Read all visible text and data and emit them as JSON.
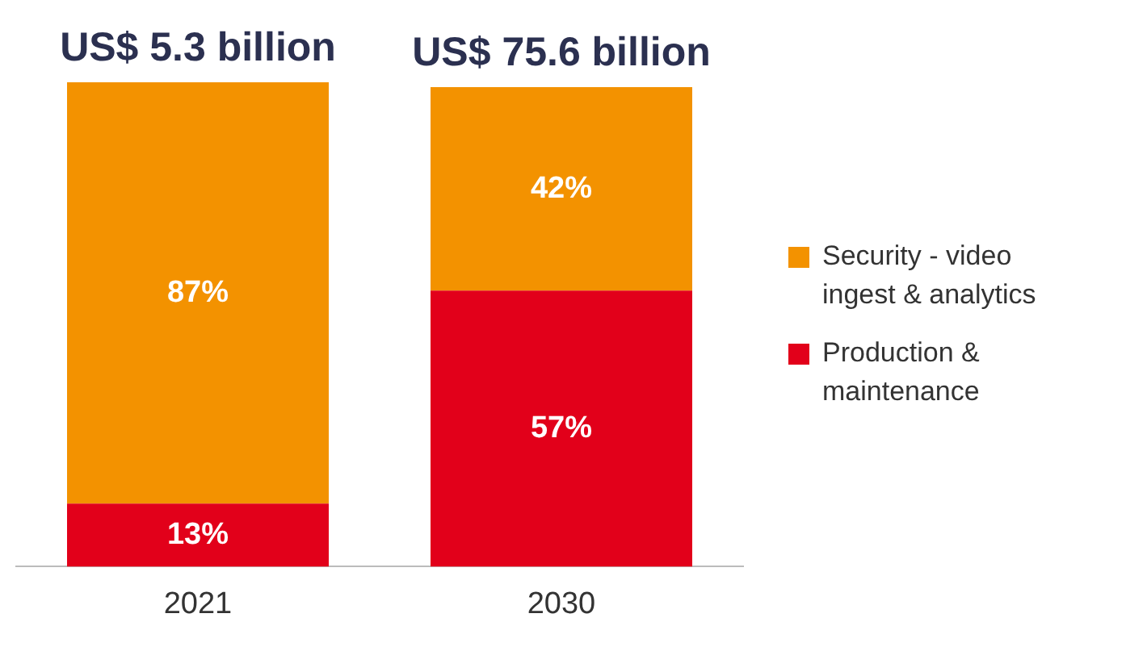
{
  "chart_data": {
    "type": "bar",
    "stacked": true,
    "categories": [
      "2021",
      "2030"
    ],
    "series": [
      {
        "name": "Production & maintenance",
        "color": "#e2001a",
        "values": [
          13,
          57
        ],
        "value_labels": [
          "13%",
          "57%"
        ]
      },
      {
        "name": "Security - video ingest & analytics",
        "color": "#f39200",
        "values": [
          87,
          42
        ],
        "value_labels": [
          "87%",
          "42%"
        ]
      }
    ],
    "totals": [
      "US$ 5.3 billion",
      "US$ 75.6 billion"
    ],
    "legend": "right",
    "grid": false,
    "tick_labels": "x"
  }
}
